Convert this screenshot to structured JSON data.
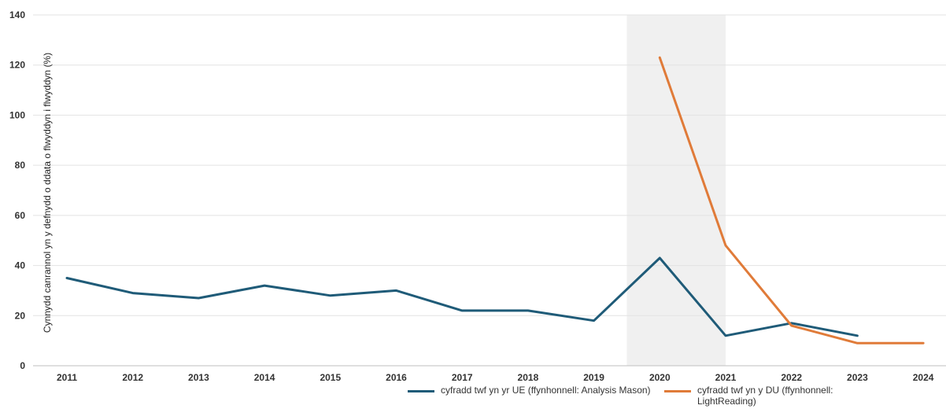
{
  "chart_data": {
    "type": "line",
    "title": "",
    "xlabel": "",
    "ylabel": "Cynnydd canrannol yn y defnydd o ddata o flwyddyn i flwyddyn (%)",
    "categories": [
      "2011",
      "2012",
      "2013",
      "2014",
      "2015",
      "2016",
      "2017",
      "2018",
      "2019",
      "2020",
      "2021",
      "2022",
      "2023",
      "2024"
    ],
    "ylim": [
      0,
      140
    ],
    "yticks": [
      0,
      20,
      40,
      60,
      80,
      100,
      120,
      140
    ],
    "grid": true,
    "highlight_band": [
      "2019",
      "2021"
    ],
    "legend_position": "bottom",
    "series": [
      {
        "name": "cyfradd twf yn yr UE (ffynhonnell: Analysis Mason)",
        "color": "#1f5b78",
        "values": [
          35,
          29,
          27,
          32,
          28,
          30,
          22,
          22,
          18,
          43,
          12,
          17,
          12,
          null
        ]
      },
      {
        "name": "cyfradd twf yn y DU (ffynhonnell: LightReading)",
        "color": "#e07b39",
        "values": [
          null,
          null,
          null,
          null,
          null,
          null,
          null,
          null,
          null,
          123,
          48,
          16,
          9,
          9
        ]
      }
    ]
  }
}
